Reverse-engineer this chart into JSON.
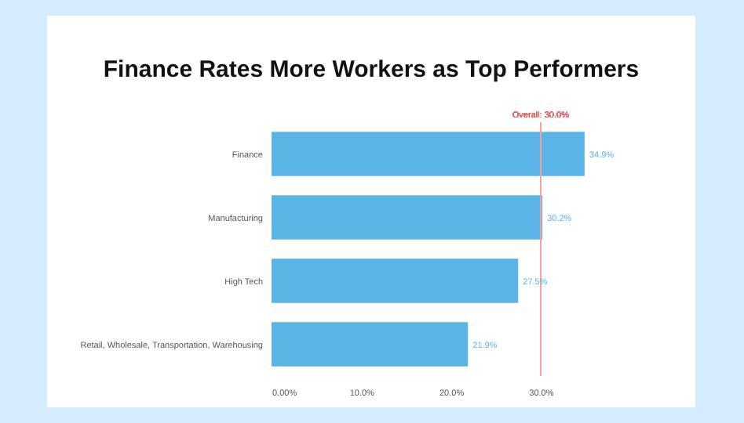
{
  "chart_data": {
    "type": "bar",
    "orientation": "horizontal",
    "title": "Finance Rates More Workers as Top Performers",
    "categories": [
      "Finance",
      "Manufacturing",
      "High Tech",
      "Retail, Wholesale, Transportation, Warehousing"
    ],
    "values": [
      34.9,
      30.2,
      27.5,
      21.9
    ],
    "value_labels": [
      "34.9%",
      "30.2%",
      "27.5%",
      "21.9%"
    ],
    "color": "#5ab4e5",
    "xlim": [
      0,
      35
    ],
    "xticks": [
      {
        "value": 0,
        "label": "0.00%"
      },
      {
        "value": 10,
        "label": "10.0%"
      },
      {
        "value": 20,
        "label": "20.0%"
      },
      {
        "value": 30,
        "label": "30.0%"
      }
    ],
    "ref_lines": [
      {
        "axis": "x",
        "value": 30,
        "label": "Overall: 30.0%",
        "color": "#f2a0a0"
      }
    ],
    "grid": false
  }
}
